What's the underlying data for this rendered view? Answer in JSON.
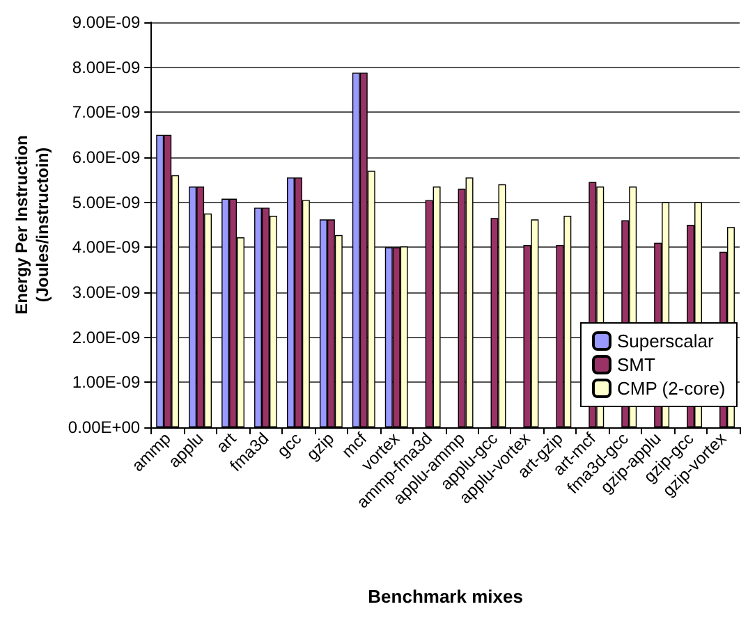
{
  "chart_data": {
    "type": "bar",
    "xlabel": "Benchmark mixes",
    "ylabel": "Energy Per Instruction\n(Joules/instructoin)",
    "categories": [
      "ammp",
      "applu",
      "art",
      "fma3d",
      "gcc",
      "gzip",
      "mcf",
      "vortex",
      "ammp-fma3d",
      "applu-ammp",
      "applu-gcc",
      "applu-vortex",
      "art-gzip",
      "art-mcf",
      "fma3d-gcc",
      "gzip-applu",
      "gzip-gcc",
      "gzip-vortex"
    ],
    "series": [
      {
        "name": "Superscalar",
        "color": "#9999ff",
        "values": [
          6.5e-09,
          5.35e-09,
          5.08e-09,
          4.88e-09,
          5.55e-09,
          4.62e-09,
          7.88e-09,
          4e-09,
          null,
          null,
          null,
          null,
          null,
          null,
          null,
          null,
          null,
          null
        ]
      },
      {
        "name": "SMT",
        "color": "#993366",
        "values": [
          6.5e-09,
          5.35e-09,
          5.08e-09,
          4.88e-09,
          5.55e-09,
          4.62e-09,
          7.88e-09,
          4e-09,
          5.05e-09,
          5.3e-09,
          4.65e-09,
          4.05e-09,
          4.05e-09,
          5.45e-09,
          4.6e-09,
          4.1e-09,
          4.5e-09,
          3.9e-09
        ]
      },
      {
        "name": "CMP (2-core)",
        "color": "#ffffcc",
        "values": [
          5.6e-09,
          4.75e-09,
          4.22e-09,
          4.7e-09,
          5.05e-09,
          4.27e-09,
          5.7e-09,
          4.02e-09,
          5.35e-09,
          5.55e-09,
          5.4e-09,
          4.62e-09,
          4.7e-09,
          5.35e-09,
          5.35e-09,
          5e-09,
          5e-09,
          4.45e-09
        ]
      }
    ],
    "ylim": [
      0,
      9e-09
    ],
    "yticks": [
      {
        "value": 0,
        "label": "0.00E+00"
      },
      {
        "value": 1e-09,
        "label": "1.00E-09"
      },
      {
        "value": 2e-09,
        "label": "2.00E-09"
      },
      {
        "value": 3e-09,
        "label": "3.00E-09"
      },
      {
        "value": 4e-09,
        "label": "4.00E-09"
      },
      {
        "value": 5e-09,
        "label": "5.00E-09"
      },
      {
        "value": 6e-09,
        "label": "6.00E-09"
      },
      {
        "value": 7e-09,
        "label": "7.00E-09"
      },
      {
        "value": 8e-09,
        "label": "8.00E-09"
      },
      {
        "value": 9e-09,
        "label": "9.00E-09"
      }
    ],
    "grid": "y",
    "legend": "right"
  }
}
